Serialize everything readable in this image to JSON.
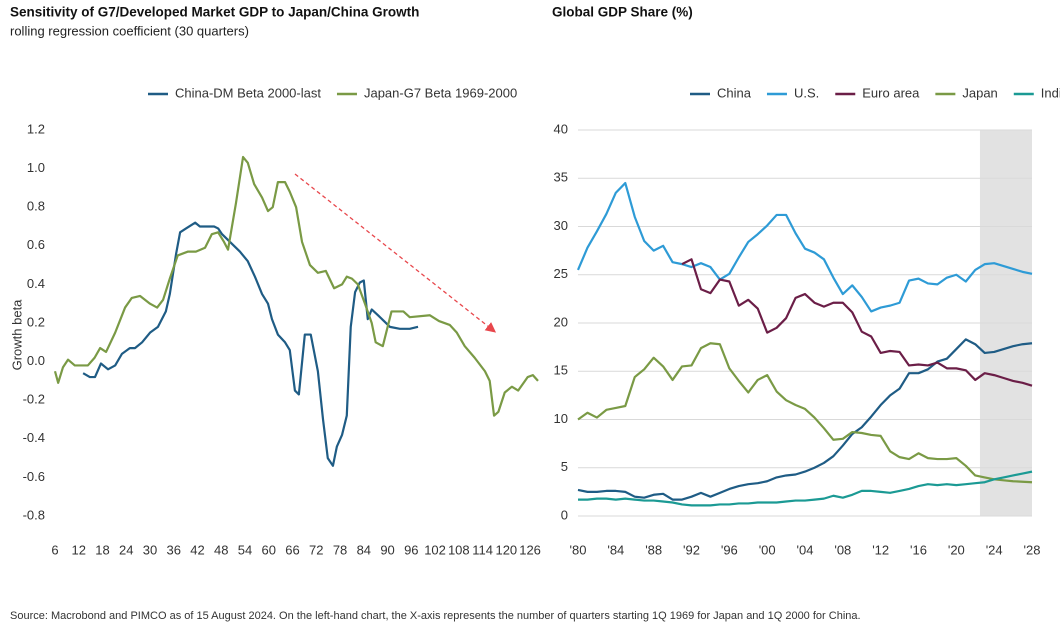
{
  "chart_data": [
    {
      "type": "line",
      "title": "Sensitivity of G7/Developed Market GDP to Japan/China Growth",
      "subtitle": "rolling regression coefficient (30 quarters)",
      "y_label": "Growth beta",
      "xlim": [
        6,
        128
      ],
      "xticks": [
        6,
        12,
        18,
        24,
        30,
        36,
        42,
        48,
        54,
        60,
        66,
        72,
        78,
        84,
        90,
        96,
        102,
        108,
        114,
        120,
        126
      ],
      "ylim": [
        -0.8,
        1.2
      ],
      "yticks": [
        1.2,
        {
          "value": 1,
          "label": "1.0"
        },
        0.8,
        0.6,
        0.4,
        0.2,
        {
          "value": 0,
          "label": "0.0"
        },
        -0.2,
        -0.4,
        -0.6,
        -0.8
      ],
      "grid": false,
      "series": [
        {
          "name": "China-DM Beta 2000-last",
          "color": "#1f5c85",
          "x": [
            13.1,
            14.8,
            16.1,
            17.6,
            19.4,
            21.2,
            22.9,
            24.9,
            26.2,
            28,
            30,
            32,
            34,
            35,
            36.6,
            37.6,
            39.1,
            41.4,
            42.6,
            44.6,
            46.2,
            47.2,
            48.2,
            50.2,
            52.7,
            54.7,
            56.5,
            58.3,
            59.8,
            60.8,
            62.3,
            64.1,
            65.3,
            66.6,
            67.6,
            69.1,
            70.6,
            72.4,
            73.7,
            74.9,
            76.2,
            77.2,
            78.5,
            79.7,
            80.7,
            81.8,
            83,
            84,
            85,
            86,
            87.6,
            89.1,
            90.6,
            93.1,
            95.6,
            97.7
          ],
          "values": [
            -0.06,
            -0.08,
            -0.08,
            -0.01,
            -0.04,
            -0.02,
            0.04,
            0.07,
            0.07,
            0.1,
            0.15,
            0.18,
            0.26,
            0.35,
            0.56,
            0.67,
            0.69,
            0.72,
            0.7,
            0.7,
            0.7,
            0.69,
            0.66,
            0.62,
            0.57,
            0.52,
            0.44,
            0.35,
            0.3,
            0.22,
            0.14,
            0.1,
            0.06,
            -0.15,
            -0.17,
            0.14,
            0.14,
            -0.05,
            -0.3,
            -0.5,
            -0.54,
            -0.44,
            -0.38,
            -0.28,
            0.18,
            0.36,
            0.41,
            0.42,
            0.22,
            0.27,
            0.24,
            0.21,
            0.18,
            0.17,
            0.17,
            0.18
          ]
        },
        {
          "name": "Japan-G7 Beta 1969-2000",
          "color": "#7a9a45",
          "x": [
            6,
            6.8,
            8,
            9.3,
            11,
            14.3,
            16,
            17.4,
            18.9,
            21.2,
            23.7,
            25.4,
            27.5,
            30,
            31.8,
            33.3,
            35,
            37,
            39.6,
            41.6,
            43.9,
            45.6,
            47.2,
            48.7,
            49.7,
            51.7,
            53.5,
            54.7,
            56.3,
            58.3,
            59.8,
            61,
            62.3,
            64.1,
            65.3,
            66.9,
            68.4,
            70.4,
            72.4,
            74.4,
            76.5,
            78.5,
            79.7,
            81,
            82.5,
            84.3,
            86,
            87,
            88.8,
            91,
            94,
            95.6,
            100.7,
            103,
            105.7,
            107.5,
            109.5,
            112,
            114.6,
            115.8,
            116.9,
            118,
            119.6,
            121.4,
            123,
            125.4,
            126.7,
            128
          ],
          "values": [
            -0.05,
            -0.11,
            -0.03,
            0.01,
            -0.02,
            -0.02,
            0.02,
            0.07,
            0.05,
            0.15,
            0.28,
            0.33,
            0.34,
            0.3,
            0.28,
            0.32,
            0.43,
            0.55,
            0.57,
            0.57,
            0.59,
            0.66,
            0.67,
            0.62,
            0.58,
            0.82,
            1.06,
            1.03,
            0.92,
            0.85,
            0.78,
            0.8,
            0.93,
            0.93,
            0.88,
            0.8,
            0.62,
            0.5,
            0.46,
            0.47,
            0.38,
            0.4,
            0.44,
            0.43,
            0.4,
            0.3,
            0.2,
            0.1,
            0.08,
            0.26,
            0.26,
            0.23,
            0.24,
            0.21,
            0.19,
            0.15,
            0.08,
            0.02,
            -0.05,
            -0.1,
            -0.28,
            -0.26,
            -0.16,
            -0.13,
            -0.15,
            -0.08,
            -0.07,
            -0.1
          ]
        }
      ]
    },
    {
      "type": "line",
      "title": "Global GDP Share (%)",
      "xlim": [
        1980,
        2028
      ],
      "xticks": [
        {
          "value": 1980,
          "label": "'80"
        },
        {
          "value": 1984,
          "label": "'84"
        },
        {
          "value": 1988,
          "label": "'88"
        },
        {
          "value": 1992,
          "label": "'92"
        },
        {
          "value": 1996,
          "label": "'96"
        },
        {
          "value": 2000,
          "label": "'00"
        },
        {
          "value": 2004,
          "label": "'04"
        },
        {
          "value": 2008,
          "label": "'08"
        },
        {
          "value": 2012,
          "label": "'12"
        },
        {
          "value": 2016,
          "label": "'16"
        },
        {
          "value": 2020,
          "label": "'20"
        },
        {
          "value": 2024,
          "label": "'24"
        },
        {
          "value": 2028,
          "label": "'28"
        }
      ],
      "ylim": [
        0,
        40
      ],
      "yticks": [
        0,
        5,
        10,
        15,
        20,
        25,
        30,
        35,
        40
      ],
      "grid": true,
      "shaded_xrange": [
        2022.5,
        2028
      ],
      "x": [
        1980,
        1981,
        1982,
        1983,
        1984,
        1985,
        1986,
        1987,
        1988,
        1989,
        1990,
        1991,
        1992,
        1993,
        1994,
        1995,
        1996,
        1997,
        1998,
        1999,
        2000,
        2001,
        2002,
        2003,
        2004,
        2005,
        2006,
        2007,
        2008,
        2009,
        2010,
        2011,
        2012,
        2013,
        2014,
        2015,
        2016,
        2017,
        2018,
        2019,
        2020,
        2021,
        2022,
        2023,
        2024,
        2025,
        2026,
        2027,
        2028
      ],
      "series": [
        {
          "name": "China",
          "color": "#1f5c85",
          "values": [
            2.7,
            2.5,
            2.5,
            2.6,
            2.6,
            2.5,
            2,
            1.9,
            2.2,
            2.3,
            1.7,
            1.7,
            2,
            2.4,
            2,
            2.4,
            2.8,
            3.1,
            3.3,
            3.4,
            3.6,
            4,
            4.2,
            4.3,
            4.6,
            5,
            5.5,
            6.2,
            7.3,
            8.5,
            9.2,
            10.3,
            11.5,
            12.5,
            13.2,
            14.8,
            14.8,
            15.2,
            16,
            16.3,
            17.3,
            18.3,
            17.8,
            16.9,
            17,
            17.3,
            17.6,
            17.8,
            17.9
          ]
        },
        {
          "name": "U.S.",
          "color": "#2e9bd6",
          "values": [
            25.5,
            27.8,
            29.5,
            31.3,
            33.5,
            34.5,
            31,
            28.5,
            27.5,
            28,
            26.3,
            26.1,
            25.8,
            26.2,
            25.8,
            24.5,
            25.1,
            26.8,
            28.4,
            29.2,
            30.1,
            31.2,
            31.2,
            29.3,
            27.7,
            27.3,
            26.6,
            24.7,
            23,
            23.9,
            22.7,
            21.2,
            21.6,
            21.8,
            22.1,
            24.4,
            24.6,
            24.1,
            24,
            24.7,
            25,
            24.3,
            25.5,
            26.1,
            26.2,
            25.9,
            25.6,
            25.3,
            25.1
          ]
        },
        {
          "name": "Euro area",
          "color": "#6b1e47",
          "values": [
            null,
            null,
            null,
            null,
            null,
            null,
            null,
            null,
            null,
            null,
            null,
            26.1,
            26.6,
            23.5,
            23.1,
            24.5,
            24.3,
            21.8,
            22.4,
            21.5,
            19,
            19.5,
            20.5,
            22.6,
            23,
            22.1,
            21.7,
            22.1,
            22.1,
            21.1,
            19.1,
            18.6,
            16.9,
            17.1,
            17,
            15.6,
            15.7,
            15.6,
            15.9,
            15.3,
            15.3,
            15.1,
            14.1,
            14.8,
            14.6,
            14.3,
            14,
            13.8,
            13.5
          ]
        },
        {
          "name": "Japan",
          "color": "#7a9a45",
          "values": [
            10,
            10.7,
            10.2,
            11,
            11.2,
            11.4,
            14.4,
            15.2,
            16.4,
            15.5,
            14.1,
            15.5,
            15.6,
            17.4,
            17.9,
            17.8,
            15.3,
            14,
            12.8,
            14.1,
            14.6,
            12.9,
            12,
            11.5,
            11.1,
            10.2,
            9.1,
            7.9,
            8,
            8.7,
            8.6,
            8.4,
            8.3,
            6.7,
            6.1,
            5.9,
            6.5,
            6,
            5.9,
            5.9,
            6,
            5.2,
            4.2,
            4,
            3.8,
            3.7,
            3.6,
            3.55,
            3.5
          ]
        },
        {
          "name": "India",
          "color": "#1b9a94",
          "values": [
            1.7,
            1.7,
            1.8,
            1.8,
            1.7,
            1.8,
            1.7,
            1.6,
            1.6,
            1.5,
            1.4,
            1.2,
            1.1,
            1.1,
            1.1,
            1.2,
            1.2,
            1.3,
            1.3,
            1.4,
            1.4,
            1.4,
            1.5,
            1.6,
            1.6,
            1.7,
            1.8,
            2.1,
            1.9,
            2.2,
            2.6,
            2.6,
            2.5,
            2.4,
            2.6,
            2.8,
            3.1,
            3.3,
            3.2,
            3.3,
            3.2,
            3.3,
            3.4,
            3.5,
            3.8,
            4,
            4.2,
            4.4,
            4.6
          ]
        }
      ]
    }
  ],
  "footnote": "Source: Macrobond and PIMCO as of 15 August 2024. On the left-hand chart, the X-axis represents the number of quarters starting 1Q 1969 for Japan and 1Q 2000 for China."
}
